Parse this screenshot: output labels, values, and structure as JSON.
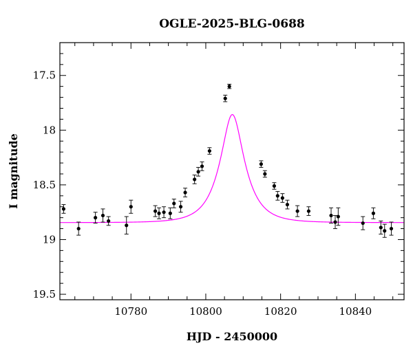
{
  "chart_data": {
    "type": "scatter",
    "title": "OGLE-2025-BLG-0688",
    "xlabel": "HJD - 2450000",
    "ylabel": "I magnitude",
    "xlim": [
      10761,
      10853
    ],
    "ylim": [
      19.55,
      17.2
    ],
    "y_inverted": true,
    "x_major_ticks": [
      10780,
      10800,
      10820,
      10840
    ],
    "y_major_ticks": [
      17.5,
      18,
      18.5,
      19,
      19.5
    ],
    "x_tick_labels": [
      "10780",
      "10800",
      "10820",
      "10840"
    ],
    "y_tick_labels": [
      "17.5",
      "18",
      "18.5",
      "19",
      "19.5"
    ],
    "grid": false,
    "colors": {
      "points": "#000000",
      "model": "#ff00ff"
    },
    "model": {
      "name": "",
      "t0": 10807.1,
      "u0": 0.43,
      "tE": 6.0,
      "I_base": 18.845
    },
    "series": [
      {
        "name": "",
        "points": [
          {
            "x": 10762.0,
            "y": 18.72,
            "err": 0.04
          },
          {
            "x": 10766.0,
            "y": 18.9,
            "err": 0.06
          },
          {
            "x": 10770.5,
            "y": 18.8,
            "err": 0.05
          },
          {
            "x": 10772.5,
            "y": 18.78,
            "err": 0.06
          },
          {
            "x": 10774.0,
            "y": 18.83,
            "err": 0.04
          },
          {
            "x": 10778.8,
            "y": 18.87,
            "err": 0.08
          },
          {
            "x": 10780.0,
            "y": 18.7,
            "err": 0.06
          },
          {
            "x": 10786.5,
            "y": 18.74,
            "err": 0.05
          },
          {
            "x": 10787.5,
            "y": 18.76,
            "err": 0.05
          },
          {
            "x": 10788.8,
            "y": 18.75,
            "err": 0.05
          },
          {
            "x": 10790.5,
            "y": 18.76,
            "err": 0.05
          },
          {
            "x": 10791.5,
            "y": 18.67,
            "err": 0.04
          },
          {
            "x": 10793.3,
            "y": 18.7,
            "err": 0.05
          },
          {
            "x": 10794.5,
            "y": 18.57,
            "err": 0.04
          },
          {
            "x": 10797.0,
            "y": 18.45,
            "err": 0.04
          },
          {
            "x": 10798.0,
            "y": 18.38,
            "err": 0.04
          },
          {
            "x": 10799.0,
            "y": 18.33,
            "err": 0.04
          },
          {
            "x": 10801.0,
            "y": 18.19,
            "err": 0.03
          },
          {
            "x": 10805.2,
            "y": 17.71,
            "err": 0.03
          },
          {
            "x": 10806.3,
            "y": 17.6,
            "err": 0.02
          },
          {
            "x": 10814.8,
            "y": 18.31,
            "err": 0.03
          },
          {
            "x": 10815.8,
            "y": 18.4,
            "err": 0.03
          },
          {
            "x": 10818.3,
            "y": 18.51,
            "err": 0.03
          },
          {
            "x": 10819.2,
            "y": 18.6,
            "err": 0.04
          },
          {
            "x": 10820.5,
            "y": 18.62,
            "err": 0.04
          },
          {
            "x": 10821.8,
            "y": 18.68,
            "err": 0.04
          },
          {
            "x": 10824.5,
            "y": 18.74,
            "err": 0.05
          },
          {
            "x": 10827.5,
            "y": 18.74,
            "err": 0.04
          },
          {
            "x": 10833.5,
            "y": 18.78,
            "err": 0.07
          },
          {
            "x": 10834.6,
            "y": 18.84,
            "err": 0.06
          },
          {
            "x": 10835.4,
            "y": 18.79,
            "err": 0.08
          },
          {
            "x": 10842.0,
            "y": 18.85,
            "err": 0.06
          },
          {
            "x": 10844.8,
            "y": 18.76,
            "err": 0.05
          },
          {
            "x": 10846.8,
            "y": 18.89,
            "err": 0.06
          },
          {
            "x": 10847.8,
            "y": 18.92,
            "err": 0.06
          },
          {
            "x": 10849.6,
            "y": 18.9,
            "err": 0.06
          }
        ]
      }
    ]
  }
}
